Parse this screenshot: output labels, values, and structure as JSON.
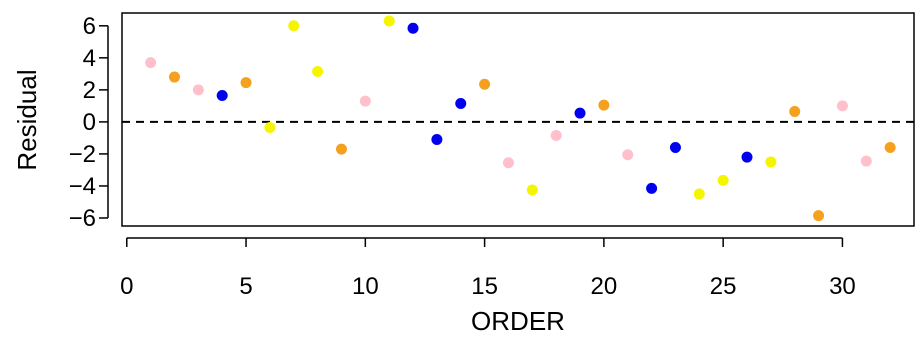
{
  "chart_data": {
    "type": "scatter",
    "xlabel": "ORDER",
    "ylabel": "Residual",
    "xlim": [
      -0.2,
      33
    ],
    "ylim": [
      -6.5,
      6.8
    ],
    "x_ticks": [
      0,
      5,
      10,
      15,
      20,
      25,
      30
    ],
    "y_ticks": [
      -6,
      -4,
      -2,
      0,
      2,
      4,
      6
    ],
    "x_tick_labels": [
      "0",
      "5",
      "10",
      "15",
      "20",
      "25",
      "30"
    ],
    "y_tick_labels": [
      "−6",
      "−4",
      "−2",
      "0",
      "2",
      "4",
      "6"
    ],
    "reference_line": {
      "y": 0,
      "style": "dashed"
    },
    "grid": false,
    "colors": {
      "pink": "#FFC0CB",
      "orange": "#F5A01E",
      "blue": "#0000EE",
      "yellow": "#F5F500"
    },
    "points": [
      {
        "x": 1,
        "y": 3.7,
        "color": "pink"
      },
      {
        "x": 2,
        "y": 2.8,
        "color": "orange"
      },
      {
        "x": 3,
        "y": 2.0,
        "color": "pink"
      },
      {
        "x": 4,
        "y": 1.65,
        "color": "blue"
      },
      {
        "x": 5,
        "y": 2.45,
        "color": "orange"
      },
      {
        "x": 6,
        "y": -0.35,
        "color": "yellow"
      },
      {
        "x": 7,
        "y": 6.0,
        "color": "yellow"
      },
      {
        "x": 8,
        "y": 3.15,
        "color": "yellow"
      },
      {
        "x": 9,
        "y": -1.7,
        "color": "orange"
      },
      {
        "x": 10,
        "y": 1.3,
        "color": "pink"
      },
      {
        "x": 11,
        "y": 6.3,
        "color": "yellow"
      },
      {
        "x": 12,
        "y": 5.85,
        "color": "blue"
      },
      {
        "x": 13,
        "y": -1.1,
        "color": "blue"
      },
      {
        "x": 14,
        "y": 1.15,
        "color": "blue"
      },
      {
        "x": 15,
        "y": 2.35,
        "color": "orange"
      },
      {
        "x": 16,
        "y": -2.55,
        "color": "pink"
      },
      {
        "x": 17,
        "y": -4.25,
        "color": "yellow"
      },
      {
        "x": 18,
        "y": -0.85,
        "color": "pink"
      },
      {
        "x": 19,
        "y": 0.55,
        "color": "blue"
      },
      {
        "x": 20,
        "y": 1.05,
        "color": "orange"
      },
      {
        "x": 21,
        "y": -2.05,
        "color": "pink"
      },
      {
        "x": 22,
        "y": -4.15,
        "color": "blue"
      },
      {
        "x": 23,
        "y": -1.6,
        "color": "blue"
      },
      {
        "x": 24,
        "y": -4.5,
        "color": "yellow"
      },
      {
        "x": 25,
        "y": -3.65,
        "color": "yellow"
      },
      {
        "x": 26,
        "y": -2.2,
        "color": "blue"
      },
      {
        "x": 27,
        "y": -2.5,
        "color": "yellow"
      },
      {
        "x": 28,
        "y": 0.65,
        "color": "orange"
      },
      {
        "x": 29,
        "y": -5.85,
        "color": "orange"
      },
      {
        "x": 30,
        "y": 1.0,
        "color": "pink"
      },
      {
        "x": 31,
        "y": -2.45,
        "color": "pink"
      },
      {
        "x": 32,
        "y": -1.6,
        "color": "orange"
      }
    ]
  }
}
